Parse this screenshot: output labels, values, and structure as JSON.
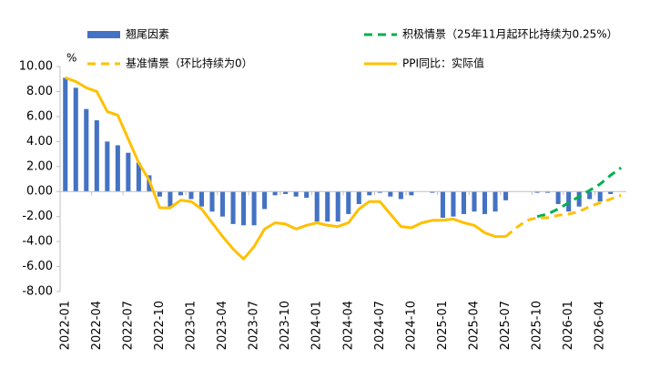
{
  "chart_data": {
    "type": "combo",
    "categories": [
      "2022-01",
      null,
      null,
      "2022-04",
      null,
      null,
      "2022-07",
      null,
      null,
      "2022-10",
      null,
      null,
      "2023-01",
      null,
      null,
      "2023-04",
      null,
      null,
      "2023-07",
      null,
      null,
      "2023-10",
      null,
      null,
      "2024-01",
      null,
      null,
      "2024-04",
      null,
      null,
      "2024-07",
      null,
      null,
      "2024-10",
      null,
      null,
      "2025-01",
      null,
      null,
      "2025-04",
      null,
      null,
      "2025-07",
      null,
      null,
      "2025-10",
      null,
      null,
      "2026-01",
      null,
      null,
      "2026-04",
      null,
      null
    ],
    "y_unit": "%",
    "ylim": [
      -8,
      10
    ],
    "yticks": [
      {
        "value": 10,
        "label": "10.00"
      },
      {
        "value": 8,
        "label": "8.00"
      },
      {
        "value": 6,
        "label": "6.00"
      },
      {
        "value": 4,
        "label": "4.00"
      },
      {
        "value": 2,
        "label": "2.00"
      },
      {
        "value": 0,
        "label": "0.00"
      },
      {
        "value": -2,
        "label": "-2.00"
      },
      {
        "value": -4,
        "label": "-4.00"
      },
      {
        "value": -6,
        "label": "-6.00"
      },
      {
        "value": -8,
        "label": "-8.00"
      }
    ],
    "grid": false,
    "series": [
      {
        "name": "翘尾因素",
        "type": "bar",
        "color": "#4472c4",
        "values": [
          9.1,
          8.3,
          6.6,
          5.7,
          4.0,
          3.7,
          3.1,
          2.3,
          1.3,
          -0.4,
          -1.2,
          -0.3,
          -0.6,
          -1.2,
          -1.6,
          -2.0,
          -2.6,
          -2.7,
          -2.7,
          -1.4,
          -0.3,
          -0.2,
          -0.4,
          -0.5,
          -2.4,
          -2.4,
          -2.4,
          -1.8,
          -1.0,
          -0.3,
          -0.1,
          -0.4,
          -0.6,
          -0.3,
          0,
          -0.1,
          -2.1,
          -2.0,
          -1.8,
          -1.6,
          -1.8,
          -1.6,
          -0.7,
          0,
          0,
          -0.1,
          -0.1,
          -1.0,
          -1.6,
          -1.2,
          -0.6,
          -0.8,
          -0.2,
          0
        ]
      },
      {
        "name": "积极情景（25年11月起环比持续为0.25%）",
        "type": "line",
        "dash": true,
        "color": "#00b050",
        "values": [
          null,
          null,
          null,
          null,
          null,
          null,
          null,
          null,
          null,
          null,
          null,
          null,
          null,
          null,
          null,
          null,
          null,
          null,
          null,
          null,
          null,
          null,
          null,
          null,
          null,
          null,
          null,
          null,
          null,
          null,
          null,
          null,
          null,
          null,
          null,
          null,
          null,
          null,
          null,
          null,
          null,
          null,
          null,
          null,
          null,
          -2.0,
          -1.8,
          -1.4,
          -0.9,
          -0.4,
          0.1,
          0.6,
          1.3,
          1.9
        ]
      },
      {
        "name": "基准情景（环比持续为0）",
        "type": "line",
        "dash": true,
        "color": "#ffc000",
        "values": [
          null,
          null,
          null,
          null,
          null,
          null,
          null,
          null,
          null,
          null,
          null,
          null,
          null,
          null,
          null,
          null,
          null,
          null,
          null,
          null,
          null,
          null,
          null,
          null,
          null,
          null,
          null,
          null,
          null,
          null,
          null,
          null,
          null,
          null,
          null,
          null,
          null,
          null,
          null,
          null,
          null,
          null,
          -3.6,
          -2.9,
          -2.3,
          -2.1,
          -2.1,
          -1.9,
          -1.8,
          -1.6,
          -1.2,
          -0.9,
          -0.6,
          -0.3
        ]
      },
      {
        "name": "PPI同比：实际值",
        "type": "line",
        "dash": false,
        "color": "#ffc000",
        "values": [
          9.1,
          8.8,
          8.3,
          8.0,
          6.4,
          6.1,
          4.2,
          2.3,
          0.9,
          -1.3,
          -1.3,
          -0.7,
          -0.8,
          -1.4,
          -2.5,
          -3.6,
          -4.6,
          -5.4,
          -4.4,
          -3.0,
          -2.5,
          -2.6,
          -3.0,
          -2.7,
          -2.5,
          -2.7,
          -2.8,
          -2.5,
          -1.4,
          -0.8,
          -0.8,
          -1.8,
          -2.8,
          -2.9,
          -2.5,
          -2.3,
          -2.3,
          -2.2,
          -2.5,
          -2.7,
          -3.3,
          -3.6,
          -3.6,
          null,
          null,
          null,
          null,
          null,
          null,
          null,
          null,
          null,
          null,
          null
        ]
      }
    ]
  }
}
